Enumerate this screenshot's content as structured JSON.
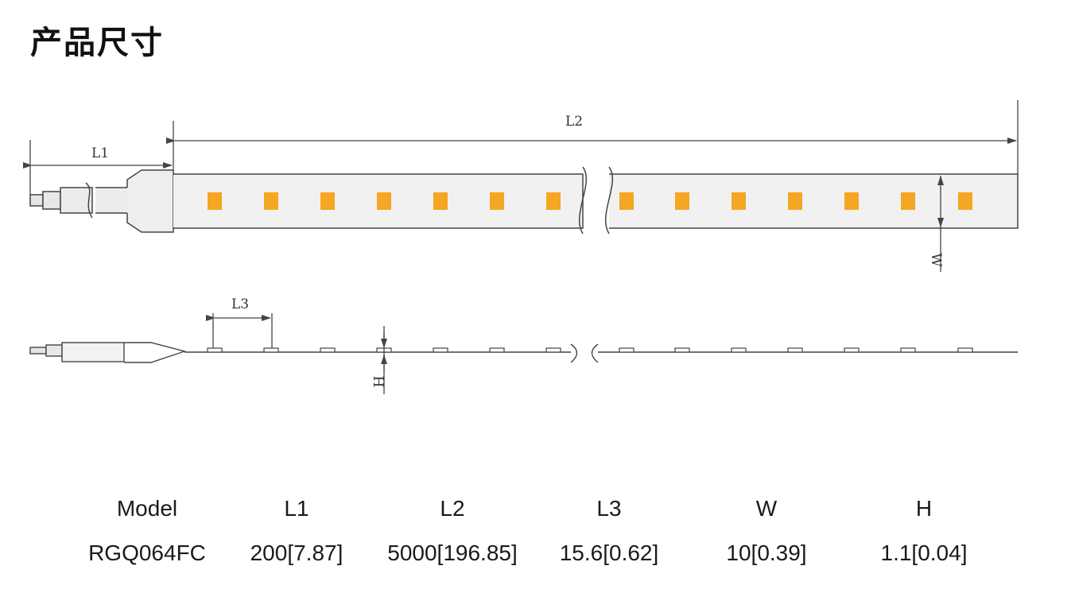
{
  "title": "产品尺寸",
  "diagram": {
    "labels": {
      "l1": "L1",
      "l2": "L2",
      "l3": "L3",
      "w": "W",
      "h": "H"
    },
    "colors": {
      "led": "#f5a623",
      "strip": "#f1f1f1",
      "line": "#444444"
    }
  },
  "table": {
    "headers": [
      "Model",
      "L1",
      "L2",
      "L3",
      "W",
      "H"
    ],
    "rows": [
      [
        "RGQ064FC",
        "200[7.87]",
        "5000[196.85]",
        "15.6[0.62]",
        "10[0.39]",
        "1.1[0.04]"
      ]
    ]
  }
}
